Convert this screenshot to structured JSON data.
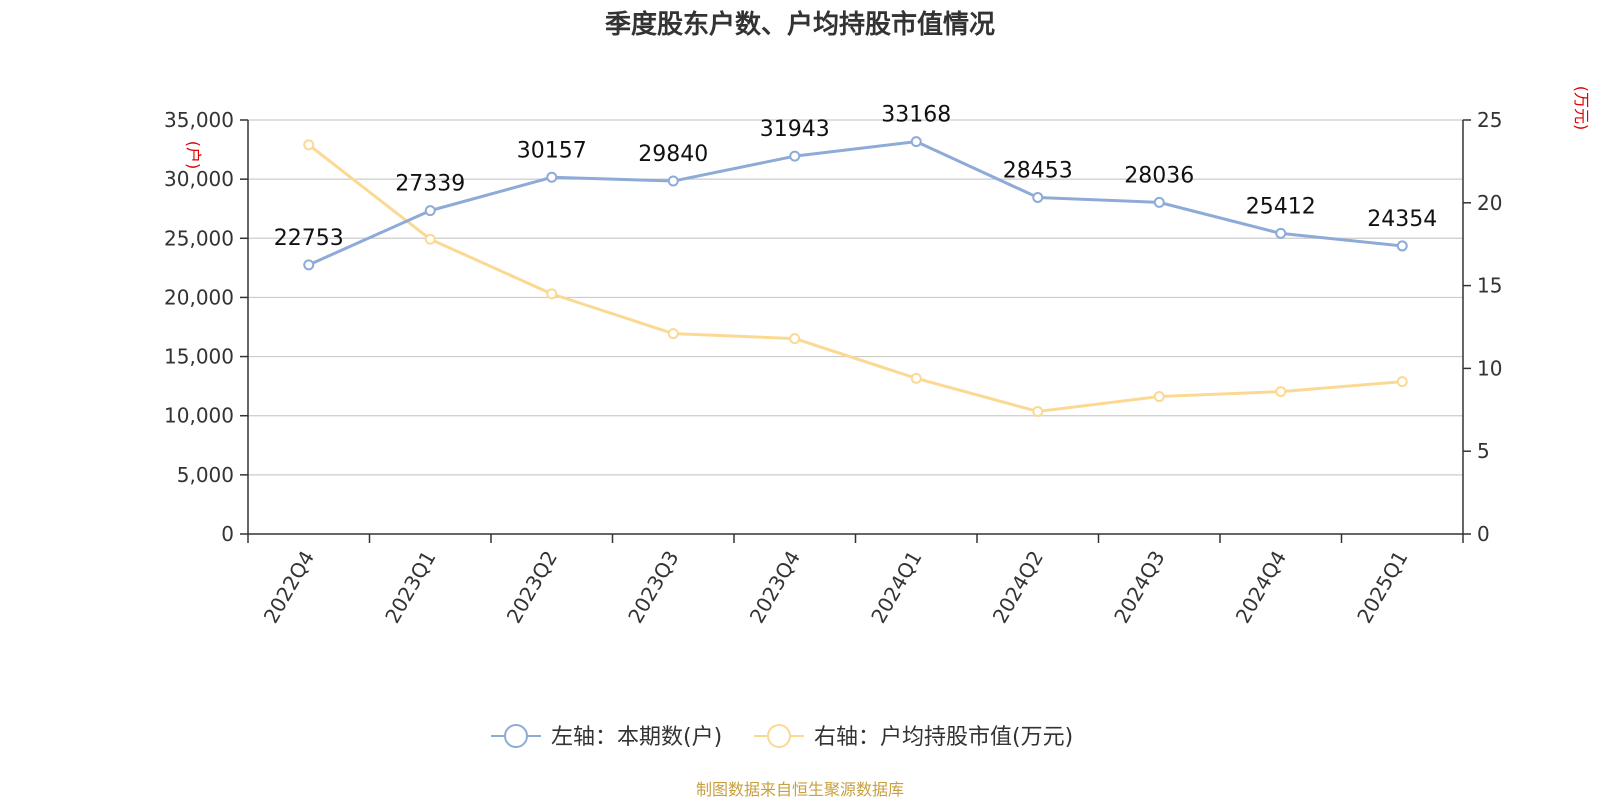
{
  "chart_data": {
    "type": "line",
    "title": "季度股东户数、户均持股市值情况",
    "categories": [
      "2022Q4",
      "2023Q1",
      "2023Q2",
      "2023Q3",
      "2023Q4",
      "2024Q1",
      "2024Q2",
      "2024Q3",
      "2024Q4",
      "2025Q1"
    ],
    "series": [
      {
        "name": "左轴：本期数(户)",
        "axis": "left",
        "color": "#8eabd8",
        "values": [
          22753,
          27339,
          30157,
          29840,
          31943,
          33168,
          28453,
          28036,
          25412,
          24354
        ],
        "data_labels": [
          "22753",
          "27339",
          "30157",
          "29840",
          "31943",
          "33168",
          "28453",
          "28036",
          "25412",
          "24354"
        ]
      },
      {
        "name": "右轴：户均持股市值(万元)",
        "axis": "right",
        "color": "#fcd993",
        "values": [
          23.5,
          17.8,
          14.5,
          12.1,
          11.8,
          9.4,
          7.4,
          8.3,
          8.6,
          9.2
        ]
      }
    ],
    "left_axis": {
      "unit": "(户)",
      "ylim": [
        0,
        35000
      ],
      "ticks": [
        0,
        5000,
        10000,
        15000,
        20000,
        25000,
        30000,
        35000
      ],
      "tick_labels": [
        "0",
        "5,000",
        "10,000",
        "15,000",
        "20,000",
        "25,000",
        "30,000",
        "35,000"
      ]
    },
    "right_axis": {
      "unit": "(万元)",
      "ylim": [
        0,
        25
      ],
      "ticks": [
        0,
        5,
        10,
        15,
        20,
        25
      ],
      "tick_labels": [
        "0",
        "5",
        "10",
        "15",
        "20",
        "25"
      ]
    },
    "grid": true,
    "legend": "bottom-center",
    "source": "制图数据来自恒生聚源数据库"
  }
}
